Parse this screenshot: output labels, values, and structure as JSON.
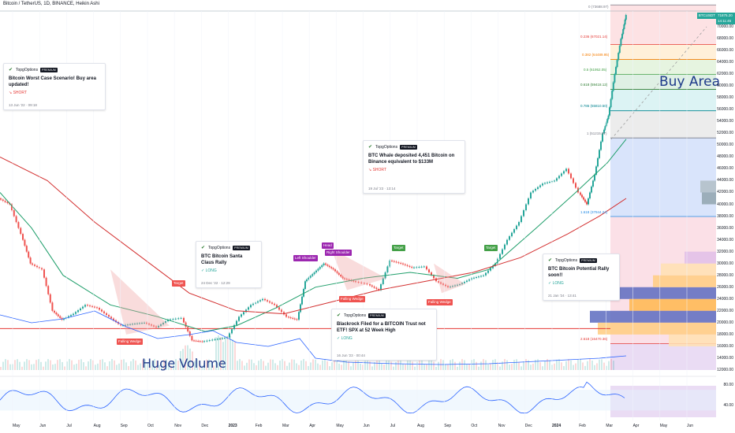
{
  "header": {
    "title": "Bitcoin / TetherUS, 1D, BINANCE, Heikin Ashi"
  },
  "colors": {
    "up": "#26a69a",
    "down": "#ef5350",
    "ema_green": "#1e9e6a",
    "ema_red": "#d32f2f",
    "buy_area": "#1e3a8a",
    "rsi_line": "#2962ff"
  },
  "annotations": {
    "huge_volume": "Huge Volume",
    "buy_area": "Buy Area",
    "tags": {
      "falling_wedge": "Falling Wedge",
      "target": "Target",
      "left_shoulder": "Left Shoulder",
      "head": "Head",
      "right_shoulder": "Right Shoulder"
    }
  },
  "ideas": [
    {
      "author": "TopgOptions",
      "badge": "PREMIUM",
      "text": "Bitcoin Worst Case Scenario! Buy area updated!",
      "direction": "SHORT",
      "date": "13 Jun '22 · 09:18"
    },
    {
      "author": "TopgOptions",
      "badge": "PREMIUM",
      "text": "BTC Bitcoin Santa Claus Rally",
      "direction": "LONG",
      "date": "24 Dec '22 · 12:29"
    },
    {
      "author": "TopgOptions",
      "badge": "PREMIUM",
      "text": "BTC Whale deposited 4,451 Bitcoin on Binance equivalent to $133M",
      "direction": "SHORT",
      "date": "19 Jul '23 · 13:14"
    },
    {
      "author": "TopgOptions",
      "badge": "PREMIUM",
      "text": "Blackrock Filed for a BITCOIN Trust not ETF! SPX at 52 Week High",
      "direction": "LONG",
      "date": "16 Jun '23 · 00:44"
    },
    {
      "author": "TopgOptions",
      "badge": "PREMIUM",
      "text": "BTC Bitcoin Potential Rally soon!!",
      "direction": "LONG",
      "date": "21 Jan '24 · 13:41"
    }
  ],
  "fib_levels": [
    {
      "label": "0 (73688.97)",
      "color": "#787b86"
    },
    {
      "label": "0.236 (67021.14)",
      "color": "#e53935"
    },
    {
      "label": "0.382 (64489.95)",
      "color": "#f57c00"
    },
    {
      "label": "0.5 (61952.05)",
      "color": "#43a047"
    },
    {
      "label": "0.618 (59418.12)",
      "color": "#2e7d32"
    },
    {
      "label": "0.786 (55810.50)",
      "color": "#00838f"
    },
    {
      "label": "1 (51215.97)",
      "color": "#787b86"
    },
    {
      "label": "1.618 (37944.24)",
      "color": "#1e88e5"
    },
    {
      "label": "2.618 (16470.36)",
      "color": "#e53935"
    }
  ],
  "price_axis": [
    "70000.00",
    "68000.00",
    "66000.00",
    "64000.00",
    "62000.00",
    "60000.00",
    "58000.00",
    "56000.00",
    "54000.00",
    "52000.00",
    "50000.00",
    "48000.00",
    "46000.00",
    "44000.00",
    "42000.00",
    "40000.00",
    "38000.00",
    "36000.00",
    "34000.00",
    "32000.00",
    "30000.00",
    "28000.00",
    "26000.00",
    "24000.00",
    "22000.00",
    "20000.00",
    "18000.00",
    "16000.00",
    "14000.00",
    "12000.00"
  ],
  "rsi_axis": [
    "80.00",
    "40.00"
  ],
  "time_axis": [
    "May",
    "Jun",
    "Jul",
    "Aug",
    "Sep",
    "Oct",
    "Nov",
    "Dec",
    "2023",
    "Feb",
    "Mar",
    "Apr",
    "May",
    "Jun",
    "Jul",
    "Aug",
    "Sep",
    "Oct",
    "Nov",
    "Dec",
    "2024",
    "Feb",
    "Mar",
    "Apr",
    "May",
    "Jun"
  ],
  "last_price": {
    "symbol": "BTCUSDT",
    "price": "71875.20",
    "countdown": "14:11:45"
  }
}
